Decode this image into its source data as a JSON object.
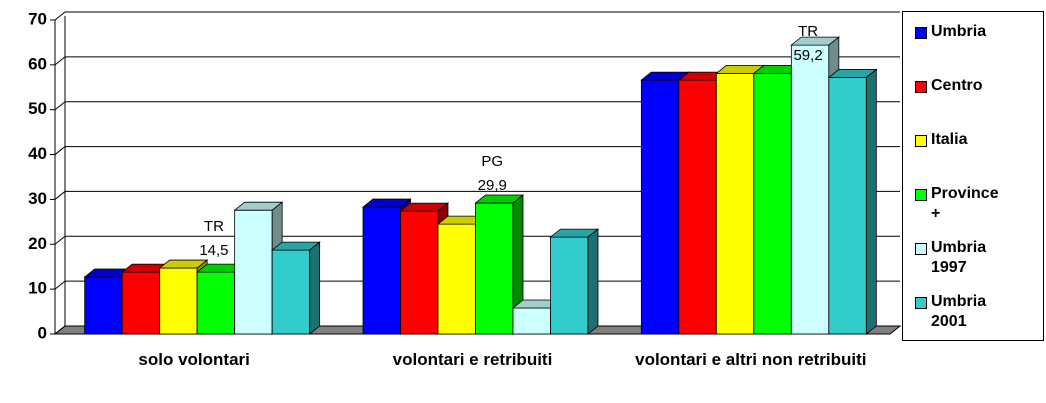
{
  "chart_data": {
    "type": "bar3d",
    "categories": [
      "solo volontari",
      "volontari e retribuiti",
      "volontari e altri non retribuiti"
    ],
    "series": [
      {
        "name": "Umbria",
        "color": "#0000ff",
        "values": [
          12.7,
          28.3,
          56.6
        ]
      },
      {
        "name": "Centro",
        "color": "#ff0000",
        "values": [
          13.8,
          27.4,
          56.6
        ]
      },
      {
        "name": "Italia",
        "color": "#ffff00",
        "values": [
          14.7,
          24.5,
          58.1
        ]
      },
      {
        "name": "Province +",
        "color": "#00ff00",
        "values": [
          13.8,
          29.2,
          58.1
        ]
      },
      {
        "name": "Umbria 1997",
        "color": "#ccffff",
        "values": [
          27.6,
          5.8,
          64.4
        ]
      },
      {
        "name": "Umbria 2001",
        "color": "#33cccc",
        "values": [
          18.7,
          21.6,
          57.2
        ]
      }
    ],
    "annotations": [
      [
        "TR",
        "14,5"
      ],
      [
        "PG",
        "29,9"
      ],
      [
        "TR",
        "59,2"
      ]
    ],
    "ylim": [
      0,
      70
    ],
    "yticks": [
      0,
      10,
      20,
      30,
      40,
      50,
      60,
      70
    ],
    "grid": true
  }
}
